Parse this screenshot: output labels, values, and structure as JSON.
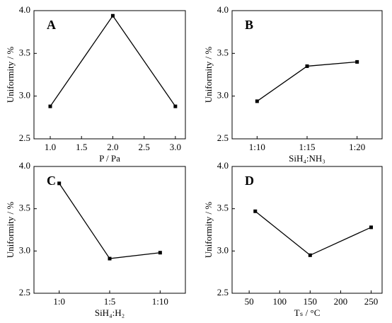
{
  "chart_data": [
    {
      "type": "line",
      "annotation": "A",
      "x_label": "P / Pa",
      "y_label": "Uniformity / %",
      "x": [
        1.0,
        2.0,
        3.0
      ],
      "values": [
        2.88,
        3.94,
        2.88
      ],
      "color": "#000000",
      "xlim": [
        0.74,
        3.16
      ],
      "xticks": [
        {
          "value": 1,
          "label": "1.0"
        },
        1.5,
        {
          "value": 2,
          "label": "2.0"
        },
        2.5,
        {
          "value": 3,
          "label": "3.0"
        }
      ],
      "ylim": [
        2.5,
        4.0
      ],
      "yticks": [
        2.5,
        {
          "value": 3,
          "label": "3.0"
        },
        3.5,
        {
          "value": 4,
          "label": "4.0"
        }
      ]
    },
    {
      "type": "line",
      "annotation": "B",
      "x_label": "SiH₄:NH₃",
      "y_label": "Uniformity / %",
      "categories": [
        "1:10",
        "1:15",
        "1:20"
      ],
      "values": [
        2.94,
        3.35,
        3.4
      ],
      "color": "#000000",
      "ylim": [
        2.5,
        4.0
      ],
      "yticks": [
        2.5,
        {
          "value": 3,
          "label": "3.0"
        },
        3.5,
        {
          "value": 4,
          "label": "4.0"
        }
      ]
    },
    {
      "type": "line",
      "annotation": "C",
      "x_label": "SiH₄:H₂",
      "y_label": "Uniformity / %",
      "categories": [
        "1:0",
        "1:5",
        "1:10"
      ],
      "values": [
        3.8,
        2.91,
        2.98
      ],
      "color": "#000000",
      "ylim": [
        2.5,
        4.0
      ],
      "yticks": [
        2.5,
        {
          "value": 3,
          "label": "3.0"
        },
        3.5,
        {
          "value": 4,
          "label": "4.0"
        }
      ]
    },
    {
      "type": "line",
      "annotation": "D",
      "x_label": "Tₛ / °C",
      "y_label": "Uniformity / %",
      "x": [
        60,
        150,
        250
      ],
      "values": [
        3.47,
        2.95,
        3.28
      ],
      "color": "#000000",
      "xlim": [
        22,
        268
      ],
      "xticks": [
        50,
        100,
        150,
        200,
        250
      ],
      "ylim": [
        2.5,
        4.0
      ],
      "yticks": [
        2.5,
        {
          "value": 3,
          "label": "3.0"
        },
        3.5,
        {
          "value": 4,
          "label": "4.0"
        }
      ]
    }
  ]
}
